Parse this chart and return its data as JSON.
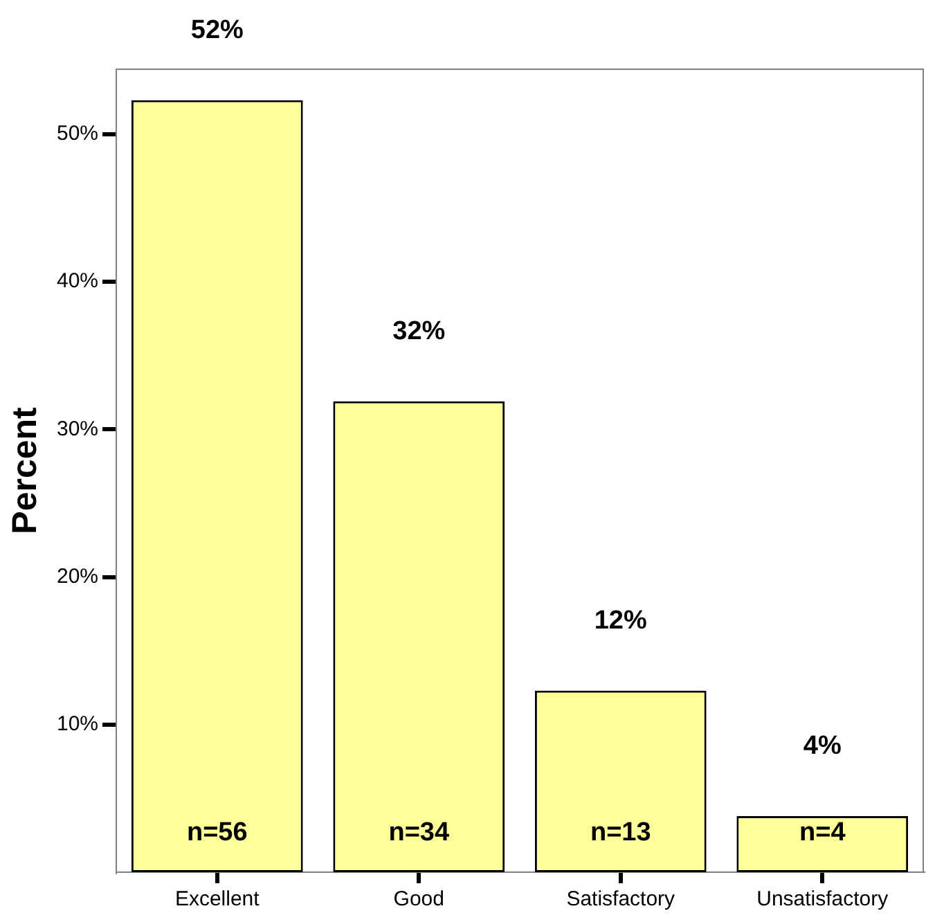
{
  "chart_data": {
    "type": "bar",
    "ylabel": "Percent",
    "categories": [
      "Excellent",
      "Good",
      "Satisfactory",
      "Unsatisfactory"
    ],
    "values": [
      52.3,
      31.9,
      12.3,
      3.8
    ],
    "value_labels": [
      "52%",
      "32%",
      "12%",
      "4%"
    ],
    "color": "#ffff99",
    "ylim": [
      0,
      54.4
    ],
    "yticks": [
      {
        "value": 10,
        "label": "10%"
      },
      {
        "value": 20,
        "label": "20%"
      },
      {
        "value": 30,
        "label": "30%"
      },
      {
        "value": 40,
        "label": "40%"
      },
      {
        "value": 50,
        "label": "50%"
      }
    ],
    "grid": false,
    "legend": false,
    "annotations": [
      "n=56",
      "n=34",
      "n=13",
      "n=4"
    ]
  }
}
